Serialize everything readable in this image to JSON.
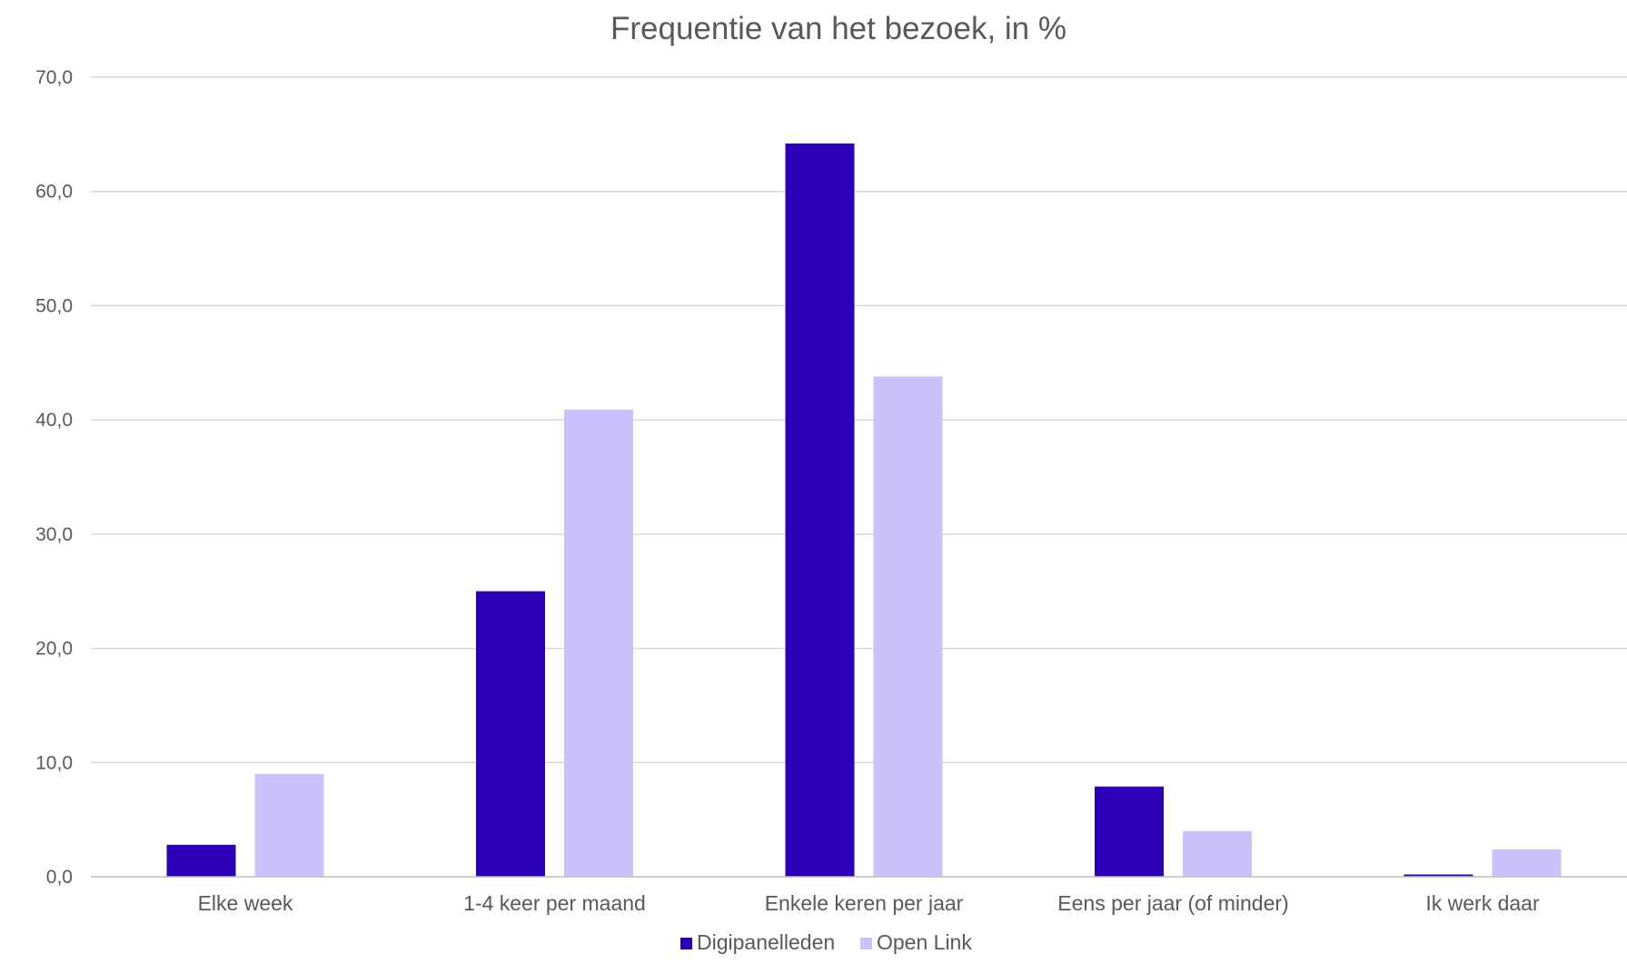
{
  "chart_data": {
    "type": "bar",
    "title": "Frequentie van het bezoek, in %",
    "xlabel": "",
    "ylabel": "",
    "categories": [
      "Elke week",
      "1-4 keer per maand",
      "Enkele keren per jaar",
      "Eens per jaar (of minder)",
      "Ik werk daar"
    ],
    "series": [
      {
        "name": "Digipanelleden",
        "color": "#2c00b6",
        "values": [
          2.8,
          25.0,
          64.2,
          7.9,
          0.2
        ]
      },
      {
        "name": "Open Link",
        "color": "#ccc1fd",
        "values": [
          9.0,
          40.9,
          43.8,
          4.0,
          2.4
        ]
      }
    ],
    "ylim": [
      0,
      70
    ],
    "yticks": [
      "0,0",
      "10,0",
      "20,0",
      "30,0",
      "40,0",
      "50,0",
      "60,0",
      "70,0"
    ],
    "grid": true,
    "legend_position": "bottom"
  }
}
